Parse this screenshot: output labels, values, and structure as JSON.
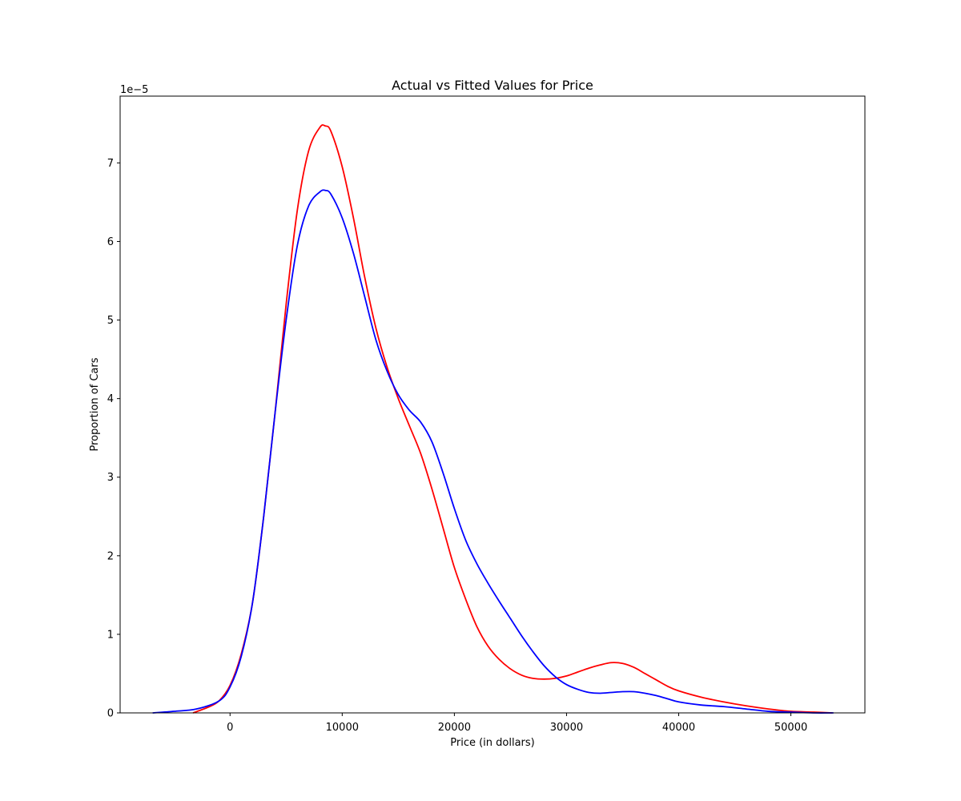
{
  "chart_data": {
    "type": "line",
    "title": "Actual vs Fitted Values for Price",
    "xlabel": "Price (in dollars)",
    "ylabel": "Proportion of Cars",
    "y_offset_label": "1e−5",
    "y_scale_multiplier": 1e-05,
    "xlim": [
      -9800,
      56600
    ],
    "ylim": [
      0,
      7.85
    ],
    "x_ticks": [
      0,
      10000,
      20000,
      30000,
      40000,
      50000
    ],
    "x_tick_labels": [
      "0",
      "10000",
      "20000",
      "30000",
      "40000",
      "50000"
    ],
    "y_ticks": [
      0,
      1,
      2,
      3,
      4,
      5,
      6,
      7
    ],
    "y_tick_labels": [
      "0",
      "1",
      "2",
      "3",
      "4",
      "5",
      "6",
      "7"
    ],
    "grid": false,
    "series": [
      {
        "color": "#ff0000",
        "x": [
          -3300,
          -2000,
          -1000,
          0,
          1000,
          2000,
          3000,
          4000,
          5000,
          6000,
          7000,
          8000,
          8500,
          9000,
          10000,
          11000,
          12000,
          13000,
          14000,
          15000,
          16000,
          17000,
          18000,
          19000,
          20000,
          21000,
          22000,
          23000,
          24000,
          25000,
          26000,
          27000,
          28000,
          29000,
          30000,
          31000,
          32000,
          33000,
          34000,
          35000,
          36000,
          37000,
          38000,
          39000,
          40000,
          42000,
          44000,
          46000,
          48000,
          50000,
          52000,
          53700
        ],
        "y": [
          0.0,
          0.07,
          0.15,
          0.35,
          0.75,
          1.4,
          2.5,
          3.8,
          5.2,
          6.4,
          7.15,
          7.45,
          7.47,
          7.4,
          6.95,
          6.3,
          5.55,
          4.9,
          4.4,
          4.0,
          3.65,
          3.3,
          2.85,
          2.35,
          1.85,
          1.45,
          1.1,
          0.85,
          0.68,
          0.56,
          0.48,
          0.44,
          0.43,
          0.44,
          0.47,
          0.52,
          0.57,
          0.61,
          0.64,
          0.63,
          0.58,
          0.5,
          0.42,
          0.34,
          0.28,
          0.2,
          0.14,
          0.09,
          0.05,
          0.02,
          0.01,
          0.0
        ]
      },
      {
        "color": "#0000ff",
        "x": [
          -6900,
          -5000,
          -3000,
          -1000,
          0,
          1000,
          2000,
          3000,
          4000,
          5000,
          6000,
          7000,
          8000,
          8500,
          9000,
          10000,
          11000,
          12000,
          13000,
          14000,
          15000,
          16000,
          17000,
          18000,
          19000,
          20000,
          21000,
          22000,
          23000,
          24000,
          25000,
          26000,
          27000,
          28000,
          29000,
          30000,
          31000,
          32000,
          33000,
          34000,
          35000,
          36000,
          37000,
          38000,
          39000,
          40000,
          42000,
          44000,
          46000,
          48000,
          50000,
          52000,
          53800
        ],
        "y": [
          0.0,
          0.02,
          0.05,
          0.15,
          0.33,
          0.72,
          1.4,
          2.5,
          3.8,
          5.0,
          5.95,
          6.45,
          6.63,
          6.65,
          6.6,
          6.3,
          5.85,
          5.3,
          4.75,
          4.35,
          4.05,
          3.85,
          3.7,
          3.45,
          3.05,
          2.6,
          2.2,
          1.9,
          1.65,
          1.42,
          1.2,
          0.98,
          0.78,
          0.6,
          0.46,
          0.36,
          0.3,
          0.26,
          0.25,
          0.26,
          0.27,
          0.27,
          0.25,
          0.22,
          0.18,
          0.14,
          0.1,
          0.08,
          0.05,
          0.02,
          0.01,
          0.0,
          0.0
        ]
      }
    ]
  }
}
